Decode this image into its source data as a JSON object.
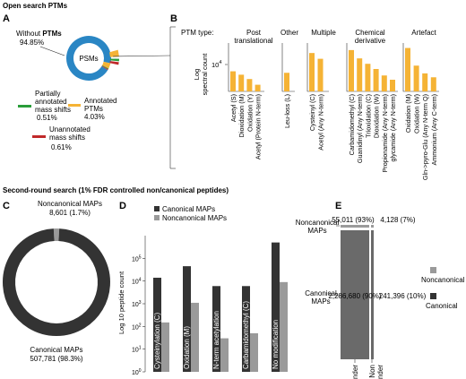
{
  "header_top": "Open search PTMs",
  "header_mid": "Second-round search (1% FDR controlled non/canonical peptides)",
  "panel_a": {
    "letter": "A",
    "without_prefix": "Without ",
    "without_bold": "PTMs",
    "without_pct": "94.85%",
    "center": "PSMs",
    "partial_1": "Partially",
    "partial_2": "annotated",
    "partial_3": "mass shifts",
    "partial_pct": "0.51%",
    "annot_1": "Annotated",
    "annot_2": "PTMs",
    "annot_pct": "4.03%",
    "unann_1": "Unannotated",
    "unann_2": "mass shifts",
    "unann_pct": "0.61%",
    "colors": {
      "without": "#2a86c4",
      "partial": "#2a9d3a",
      "annotated": "#f5b335",
      "unannotated": "#c0292a"
    }
  },
  "panel_b": {
    "letter": "B",
    "ptm_type": "PTM type:",
    "ylabel_1": "Log",
    "ylabel_2": "spectral count",
    "ytick_base": "10",
    "ytick_exp": "4",
    "groups": [
      {
        "title_1": "Post",
        "title_2": "translational"
      },
      {
        "title_1": "Other",
        "title_2": ""
      },
      {
        "title_1": "Multiple",
        "title_2": ""
      },
      {
        "title_1": "Chemical",
        "title_2": "derivative"
      },
      {
        "title_1": "Artefact",
        "title_2": ""
      }
    ],
    "bar_color": "#f5b335"
  },
  "chart_data": [
    {
      "type": "bar",
      "panel": "B",
      "ylabel": "Log spectral count",
      "log_scale": true,
      "groups": [
        {
          "name": "Post translational",
          "categories": [
            "Acetyl (S)",
            "Dioxidation (M)",
            "Oxidation (Y)",
            "Acetyl (Protein N-term)"
          ],
          "values": [
            1600,
            1000,
            550,
            250
          ]
        },
        {
          "name": "Other",
          "categories": [
            "Leu-loss (L)"
          ],
          "values": [
            1300
          ]
        },
        {
          "name": "Multiple",
          "categories": [
            "Cysteinyl (C)",
            "Acetyl (Any N-term)"
          ],
          "values": [
            20000,
            9000
          ]
        },
        {
          "name": "Chemical derivative",
          "categories": [
            "Carbamidomethyl (C)",
            "Guanidinyl (Any N-term)",
            "Trioxidation (C)",
            "Dioxidation (W)",
            "Propionamide (Any N-term)",
            "glycamide (Any N-term)"
          ],
          "values": [
            30000,
            9500,
            4500,
            2200,
            900,
            500
          ]
        },
        {
          "name": "Artefact",
          "categories": [
            "Oxidation (M)",
            "Oxidation (W)",
            "Gln->pyro-Glu (Any N-term Q)",
            "Ammonium (Any C-term)"
          ],
          "values": [
            40000,
            3500,
            1200,
            700
          ]
        }
      ]
    },
    {
      "type": "pie",
      "panel": "C",
      "labels": [
        "Noncanonical MAPs",
        "Canonical MAPs"
      ],
      "values": [
        8601,
        507781
      ],
      "percent": [
        1.7,
        98.3
      ]
    },
    {
      "type": "bar",
      "panel": "D",
      "ylabel": "Log 10 peptide count",
      "log_scale": true,
      "ylim": [
        1,
        1000000
      ],
      "categories": [
        "Cysteinylation (C)",
        "Oxidation (M)",
        "N-term acetylation",
        "Carbamidomethyl (C)",
        "No modification"
      ],
      "series": [
        {
          "name": "Canonical MAPs",
          "values": [
            14000,
            45000,
            6000,
            6000,
            500000
          ]
        },
        {
          "name": "Noncanonical MAPs",
          "values": [
            150,
            1100,
            30,
            50,
            9000
          ]
        }
      ]
    },
    {
      "type": "table",
      "panel": "E",
      "columns": [
        "Binder",
        "Non binder"
      ],
      "rows": [
        "Noncanonical MAPs",
        "Canonical MAPs"
      ],
      "cells": [
        [
          "55,011 (93%)",
          "4,128 (7%)"
        ],
        [
          "2,286,680 (90%)",
          "241,396 (10%)"
        ]
      ]
    }
  ],
  "panel_c": {
    "letter": "C",
    "noncanon_label": "Noncanonical MAPs",
    "noncanon_value": "8,601 (1.7%)",
    "canon_label": "Canonical MAPs",
    "canon_value": "507,781 (98.3%)",
    "colors": {
      "canonical": "#333333",
      "noncanonical": "#9a9a9a"
    }
  },
  "panel_d": {
    "letter": "D",
    "legend_canonical": "Canonical MAPs",
    "legend_noncanonical": "Noncanonical MAPs",
    "ylabel": "Log 10 peptide count",
    "ytick_base": "10",
    "ytick_exps": [
      "0",
      "1",
      "2",
      "3",
      "4",
      "5"
    ],
    "colors": {
      "canonical": "#333333",
      "noncanonical": "#9a9a9a"
    }
  },
  "panel_e": {
    "letter": "E",
    "row_noncanon_1": "Noncanonical",
    "row_noncanon_2": "MAPs",
    "row_canon_1": "Canonical",
    "row_canon_2": "MAPs",
    "val_nc_binder": "55,011 (93%)",
    "val_nc_nonbinder": "4,128 (7%)",
    "val_c_binder": "2,286,680 (90%)",
    "val_c_nonbinder": "241,396 (10%)",
    "col_binder": "Binder",
    "col_non": "Non",
    "col_binder2": "binder",
    "legend_noncanonical": "Noncanonical",
    "legend_canonical": "Canonical",
    "colors": {
      "canonical": "#6a6a6a",
      "noncanonical": "#9a9a9a"
    }
  }
}
